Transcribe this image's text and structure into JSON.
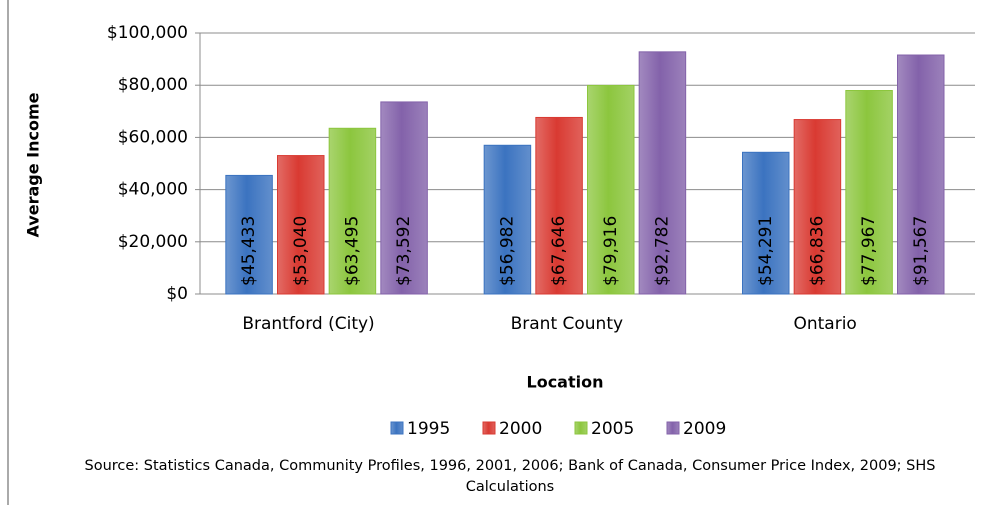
{
  "chart_data": {
    "type": "bar",
    "y_axis_label": "Average Income",
    "x_axis_label": "Location",
    "source": "Source: Statistics Canada, Community Profiles, 1996, 2001, 2006; Bank of Canada, Consumer Price Index, 2009; SHS Calculations",
    "categories": [
      "Brantford (City)",
      "Brant County",
      "Ontario"
    ],
    "series": [
      {
        "name": "1995",
        "color": "#3b73c0",
        "values": [
          45433,
          56982,
          54291
        ],
        "value_labels": [
          "$45,433",
          "$56,982",
          "$54,291"
        ]
      },
      {
        "name": "2000",
        "color": "#d93a32",
        "values": [
          53040,
          67646,
          66836
        ],
        "value_labels": [
          "$53,040",
          "$67,646",
          "$66,836"
        ]
      },
      {
        "name": "2005",
        "color": "#8cc63e",
        "values": [
          63495,
          79916,
          77967
        ],
        "value_labels": [
          "$63,495",
          "$79,916",
          "$77,967"
        ]
      },
      {
        "name": "2009",
        "color": "#8362aa",
        "values": [
          73592,
          92782,
          91567
        ],
        "value_labels": [
          "$73,592",
          "$92,782",
          "$91,567"
        ]
      }
    ],
    "ylim": [
      0,
      100000
    ],
    "yticks": [
      {
        "value": 0,
        "label": "$0"
      },
      {
        "value": 20000,
        "label": "$20,000"
      },
      {
        "value": 40000,
        "label": "$40,000"
      },
      {
        "value": 60000,
        "label": "$60,000"
      },
      {
        "value": 80000,
        "label": "$80,000"
      },
      {
        "value": 100000,
        "label": "$100,000"
      }
    ],
    "grid": true,
    "legend": "bottom"
  }
}
